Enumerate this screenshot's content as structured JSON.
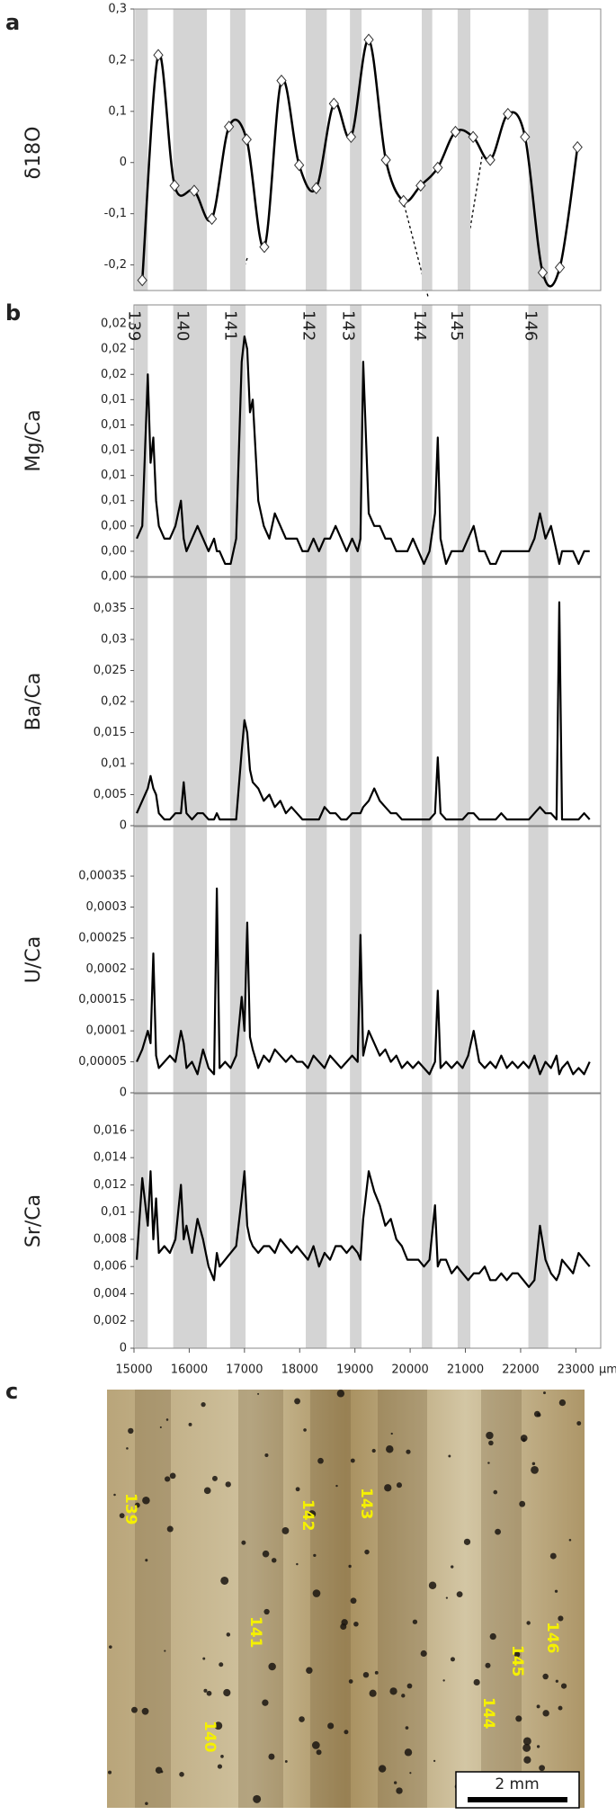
{
  "panel_labels": [
    "a",
    "b",
    "c"
  ],
  "chart_data": [
    {
      "type": "line",
      "ylabel": "δ18O",
      "color": "#000000",
      "x": [
        15150,
        15440,
        15735,
        16090,
        16410,
        16720,
        17040,
        17360,
        17670,
        17990,
        18300,
        18620,
        18930,
        19250,
        19560,
        19880,
        20190,
        20500,
        20820,
        21140,
        21450,
        21770,
        22080,
        22400,
        22710,
        23030
      ],
      "values": [
        -0.23,
        0.21,
        -0.045,
        -0.055,
        -0.11,
        0.07,
        0.045,
        -0.165,
        0.16,
        -0.005,
        -0.05,
        0.115,
        0.05,
        0.24,
        0.005,
        -0.075,
        -0.045,
        -0.01,
        0.06,
        0.05,
        0.005,
        0.095,
        0.05,
        -0.215,
        -0.205,
        0.03
      ],
      "xlim": [
        15000,
        23450
      ],
      "ylim": [
        -0.25,
        0.3
      ],
      "yticks": [
        {
          "value": 0.3,
          "label": "0,3"
        },
        {
          "value": 0.2,
          "label": "0,2"
        },
        {
          "value": 0.1,
          "label": "0,1"
        },
        0,
        {
          "value": -0.1,
          "label": "-0,1"
        },
        {
          "value": -0.2,
          "label": "-0,2"
        }
      ]
    },
    {
      "type": "line",
      "xlim": [
        15000,
        23450
      ],
      "xticks": [
        15000,
        16000,
        17000,
        18000,
        19000,
        20000,
        21000,
        22000,
        23000
      ],
      "xlabel": "µm",
      "color": "#000000",
      "bands": [
        {
          "label": "139",
          "range": [
            15020,
            15250
          ]
        },
        {
          "label": "140",
          "range": [
            15710,
            16320
          ]
        },
        {
          "label": "141",
          "range": [
            16740,
            17020
          ]
        },
        {
          "label": "142",
          "range": [
            18110,
            18490
          ]
        },
        {
          "label": "143",
          "range": [
            18910,
            19120
          ]
        },
        {
          "label": "144",
          "range": [
            20210,
            20400
          ]
        },
        {
          "label": "145",
          "range": [
            20860,
            21090
          ]
        },
        {
          "label": "146",
          "range": [
            22140,
            22500
          ]
        }
      ],
      "x": [
        15050,
        15150,
        15250,
        15300,
        15350,
        15400,
        15450,
        15550,
        15650,
        15750,
        15850,
        15900,
        15950,
        16050,
        16150,
        16250,
        16350,
        16450,
        16500,
        16550,
        16650,
        16750,
        16850,
        16950,
        17000,
        17050,
        17100,
        17150,
        17250,
        17350,
        17450,
        17550,
        17650,
        17750,
        17850,
        17950,
        18050,
        18150,
        18250,
        18350,
        18450,
        18550,
        18650,
        18750,
        18850,
        18950,
        19050,
        19100,
        19150,
        19250,
        19350,
        19450,
        19550,
        19650,
        19750,
        19850,
        19950,
        20050,
        20150,
        20250,
        20350,
        20450,
        20500,
        20550,
        20650,
        20750,
        20850,
        20950,
        21050,
        21150,
        21250,
        21350,
        21450,
        21550,
        21650,
        21750,
        21850,
        21950,
        22050,
        22150,
        22250,
        22350,
        22450,
        22550,
        22650,
        22700,
        22750,
        22850,
        22950,
        23050,
        23150,
        23250
      ],
      "series": [
        {
          "name": "Mg/Ca",
          "ylim": [
            0,
            0.0215
          ],
          "yticks": [
            {
              "value": 0,
              "label": "0,00"
            },
            {
              "value": 0.002,
              "label": "0,00"
            },
            {
              "value": 0.004,
              "label": "0,00"
            },
            {
              "value": 0.006,
              "label": "0,01"
            },
            {
              "value": 0.008,
              "label": "0,01"
            },
            {
              "value": 0.01,
              "label": "0,01"
            },
            {
              "value": 0.012,
              "label": "0,01"
            },
            {
              "value": 0.014,
              "label": "0,01"
            },
            {
              "value": 0.016,
              "label": "0,02"
            },
            {
              "value": 0.018,
              "label": "0,02"
            },
            {
              "value": 0.02,
              "label": "0,02"
            }
          ],
          "values": [
            0.003,
            0.004,
            0.016,
            0.009,
            0.011,
            0.006,
            0.004,
            0.003,
            0.003,
            0.004,
            0.006,
            0.003,
            0.002,
            0.003,
            0.004,
            0.003,
            0.002,
            0.003,
            0.002,
            0.002,
            0.001,
            0.001,
            0.003,
            0.017,
            0.019,
            0.018,
            0.013,
            0.014,
            0.006,
            0.004,
            0.003,
            0.005,
            0.004,
            0.003,
            0.003,
            0.003,
            0.002,
            0.002,
            0.003,
            0.002,
            0.003,
            0.003,
            0.004,
            0.003,
            0.002,
            0.003,
            0.002,
            0.003,
            0.017,
            0.005,
            0.004,
            0.004,
            0.003,
            0.003,
            0.002,
            0.002,
            0.002,
            0.003,
            0.002,
            0.001,
            0.002,
            0.005,
            0.011,
            0.003,
            0.001,
            0.002,
            0.002,
            0.002,
            0.003,
            0.004,
            0.002,
            0.002,
            0.001,
            0.001,
            0.002,
            0.002,
            0.002,
            0.002,
            0.002,
            0.002,
            0.003,
            0.005,
            0.003,
            0.004,
            0.002,
            0.001,
            0.002,
            0.002,
            0.002,
            0.001,
            0.002,
            0.002
          ]
        },
        {
          "name": "Ba/Ca",
          "ylim": [
            0,
            0.04
          ],
          "yticks": [
            0,
            {
              "value": 0.005,
              "label": "0,005"
            },
            {
              "value": 0.01,
              "label": "0,01"
            },
            {
              "value": 0.015,
              "label": "0,015"
            },
            {
              "value": 0.02,
              "label": "0,02"
            },
            {
              "value": 0.025,
              "label": "0,025"
            },
            {
              "value": 0.03,
              "label": "0,03"
            },
            {
              "value": 0.035,
              "label": "0,035"
            }
          ],
          "values": [
            0.002,
            0.004,
            0.006,
            0.008,
            0.006,
            0.005,
            0.002,
            0.001,
            0.001,
            0.002,
            0.002,
            0.007,
            0.002,
            0.001,
            0.002,
            0.002,
            0.001,
            0.001,
            0.002,
            0.001,
            0.001,
            0.001,
            0.001,
            0.012,
            0.017,
            0.015,
            0.009,
            0.007,
            0.006,
            0.004,
            0.005,
            0.003,
            0.004,
            0.002,
            0.003,
            0.002,
            0.001,
            0.001,
            0.001,
            0.001,
            0.003,
            0.002,
            0.002,
            0.001,
            0.001,
            0.002,
            0.002,
            0.002,
            0.003,
            0.004,
            0.006,
            0.004,
            0.003,
            0.002,
            0.002,
            0.001,
            0.001,
            0.001,
            0.001,
            0.001,
            0.001,
            0.002,
            0.011,
            0.002,
            0.001,
            0.001,
            0.001,
            0.001,
            0.002,
            0.002,
            0.001,
            0.001,
            0.001,
            0.001,
            0.002,
            0.001,
            0.001,
            0.001,
            0.001,
            0.001,
            0.002,
            0.003,
            0.002,
            0.002,
            0.001,
            0.036,
            0.001,
            0.001,
            0.001,
            0.001,
            0.002,
            0.001
          ]
        },
        {
          "name": "U/Ca",
          "ylim": [
            0,
            0.00043
          ],
          "yticks": [
            0,
            {
              "value": 5e-05,
              "label": "0,00005"
            },
            {
              "value": 0.0001,
              "label": "0,0001"
            },
            {
              "value": 0.00015,
              "label": "0,00015"
            },
            {
              "value": 0.0002,
              "label": "0,0002"
            },
            {
              "value": 0.00025,
              "label": "0,00025"
            },
            {
              "value": 0.0003,
              "label": "0,0003"
            },
            {
              "value": 0.00035,
              "label": "0,00035"
            }
          ],
          "values": [
            5e-05,
            7e-05,
            0.0001,
            8e-05,
            0.000225,
            6e-05,
            4e-05,
            5e-05,
            6e-05,
            5e-05,
            0.0001,
            8e-05,
            4e-05,
            5e-05,
            3e-05,
            7e-05,
            4e-05,
            3e-05,
            0.00033,
            4e-05,
            5e-05,
            4e-05,
            6e-05,
            0.000155,
            0.0001,
            0.000275,
            9e-05,
            7e-05,
            4e-05,
            6e-05,
            5e-05,
            7e-05,
            6e-05,
            5e-05,
            6e-05,
            5e-05,
            5e-05,
            4e-05,
            6e-05,
            5e-05,
            4e-05,
            6e-05,
            5e-05,
            4e-05,
            5e-05,
            6e-05,
            5e-05,
            0.000255,
            6e-05,
            0.0001,
            8e-05,
            6e-05,
            7e-05,
            5e-05,
            6e-05,
            4e-05,
            5e-05,
            4e-05,
            5e-05,
            4e-05,
            3e-05,
            5e-05,
            0.000165,
            4e-05,
            5e-05,
            4e-05,
            5e-05,
            4e-05,
            6e-05,
            0.0001,
            5e-05,
            4e-05,
            5e-05,
            4e-05,
            6e-05,
            4e-05,
            5e-05,
            4e-05,
            5e-05,
            4e-05,
            6e-05,
            3e-05,
            5e-05,
            4e-05,
            6e-05,
            3e-05,
            4e-05,
            5e-05,
            3e-05,
            4e-05,
            3e-05,
            5e-05
          ]
        },
        {
          "name": "Sr/Ca",
          "ylim": [
            0,
            0.0187
          ],
          "yticks": [
            0,
            {
              "value": 0.002,
              "label": "0,002"
            },
            {
              "value": 0.004,
              "label": "0,004"
            },
            {
              "value": 0.006,
              "label": "0,006"
            },
            {
              "value": 0.008,
              "label": "0,008"
            },
            {
              "value": 0.01,
              "label": "0,01"
            },
            {
              "value": 0.012,
              "label": "0,012"
            },
            {
              "value": 0.014,
              "label": "0,014"
            },
            {
              "value": 0.016,
              "label": "0,016"
            }
          ],
          "values": [
            0.0065,
            0.0125,
            0.009,
            0.013,
            0.008,
            0.011,
            0.007,
            0.0075,
            0.007,
            0.008,
            0.012,
            0.008,
            0.009,
            0.007,
            0.0095,
            0.008,
            0.006,
            0.005,
            0.007,
            0.006,
            0.0065,
            0.007,
            0.0075,
            0.011,
            0.013,
            0.009,
            0.008,
            0.0075,
            0.007,
            0.0075,
            0.0075,
            0.007,
            0.008,
            0.0075,
            0.007,
            0.0075,
            0.007,
            0.0065,
            0.0075,
            0.006,
            0.007,
            0.0065,
            0.0075,
            0.0075,
            0.007,
            0.0075,
            0.007,
            0.0065,
            0.0095,
            0.013,
            0.0115,
            0.0105,
            0.009,
            0.0095,
            0.008,
            0.0075,
            0.0065,
            0.0065,
            0.0065,
            0.006,
            0.0065,
            0.0105,
            0.006,
            0.0065,
            0.0065,
            0.0055,
            0.006,
            0.0055,
            0.005,
            0.0055,
            0.0055,
            0.006,
            0.005,
            0.005,
            0.0055,
            0.005,
            0.0055,
            0.0055,
            0.005,
            0.0045,
            0.005,
            0.009,
            0.0065,
            0.0055,
            0.005,
            0.0055,
            0.0065,
            0.006,
            0.0055,
            0.007,
            0.0065,
            0.006
          ]
        }
      ]
    }
  ],
  "photo": {
    "labels": [
      "139",
      "142",
      "143",
      "141",
      "140",
      "144",
      "145",
      "146"
    ],
    "scale_bar": "2 mm"
  }
}
